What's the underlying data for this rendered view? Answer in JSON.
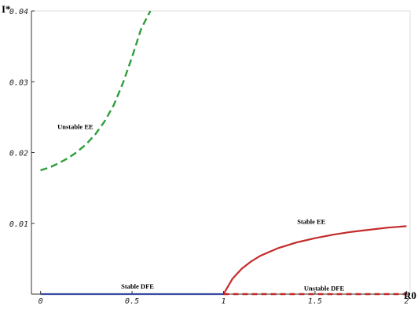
{
  "chart_data": {
    "type": "line",
    "title": "",
    "xlabel": "R0",
    "ylabel": "I*",
    "xlim": [
      -0.05,
      2.02
    ],
    "ylim": [
      0.0,
      0.04
    ],
    "x_ticks": [
      {
        "value": 0,
        "label": "0"
      },
      {
        "value": 0.5,
        "label": "0.5"
      },
      {
        "value": 1,
        "label": "1"
      },
      {
        "value": 1.5,
        "label": "1.5"
      },
      {
        "value": 2,
        "label": "2"
      }
    ],
    "y_ticks": [
      {
        "value": 0.01,
        "label": "0.01"
      },
      {
        "value": 0.02,
        "label": "0.02"
      },
      {
        "value": 0.03,
        "label": "0.03"
      },
      {
        "value": 0.04,
        "label": "0.04"
      }
    ],
    "grid": false,
    "series": [
      {
        "name": "Unstable EE",
        "color": "#2e9e3a",
        "dash": "dashed",
        "x": [
          0,
          0.05,
          0.1,
          0.15,
          0.2,
          0.25,
          0.3,
          0.35,
          0.4,
          0.45,
          0.5,
          0.55,
          0.6
        ],
        "y": [
          0.0175,
          0.0179,
          0.0185,
          0.0192,
          0.0201,
          0.0212,
          0.0226,
          0.0244,
          0.0267,
          0.0298,
          0.0335,
          0.0375,
          0.0405
        ]
      },
      {
        "name": "Stable DFE",
        "color": "#3b4ba0",
        "dash": "solid",
        "x": [
          0,
          1
        ],
        "y": [
          0.0,
          0.0
        ]
      },
      {
        "name": "Stable EE",
        "color": "#c42a2a",
        "dash": "solid",
        "x": [
          1.0,
          1.05,
          1.1,
          1.15,
          1.2,
          1.3,
          1.4,
          1.5,
          1.6,
          1.7,
          1.8,
          1.9,
          2.0
        ],
        "y": [
          0.0,
          0.0022,
          0.0036,
          0.0046,
          0.0054,
          0.0065,
          0.0073,
          0.0079,
          0.0084,
          0.0088,
          0.0091,
          0.0094,
          0.0096
        ]
      },
      {
        "name": "Unstable DFE",
        "color": "#c42a2a",
        "dash": "dashed",
        "x": [
          1,
          2
        ],
        "y": [
          0.0,
          0.0
        ]
      }
    ],
    "annotations": [
      {
        "text": "Unstable EE",
        "x": 0.19,
        "y": 0.0233
      },
      {
        "text": "Stable DFE",
        "x": 0.53,
        "y": 0.00075
      },
      {
        "text": "Stable EE",
        "x": 1.48,
        "y": 0.0099
      },
      {
        "text": "Unstable DFE",
        "x": 1.55,
        "y": 0.0005
      }
    ]
  }
}
